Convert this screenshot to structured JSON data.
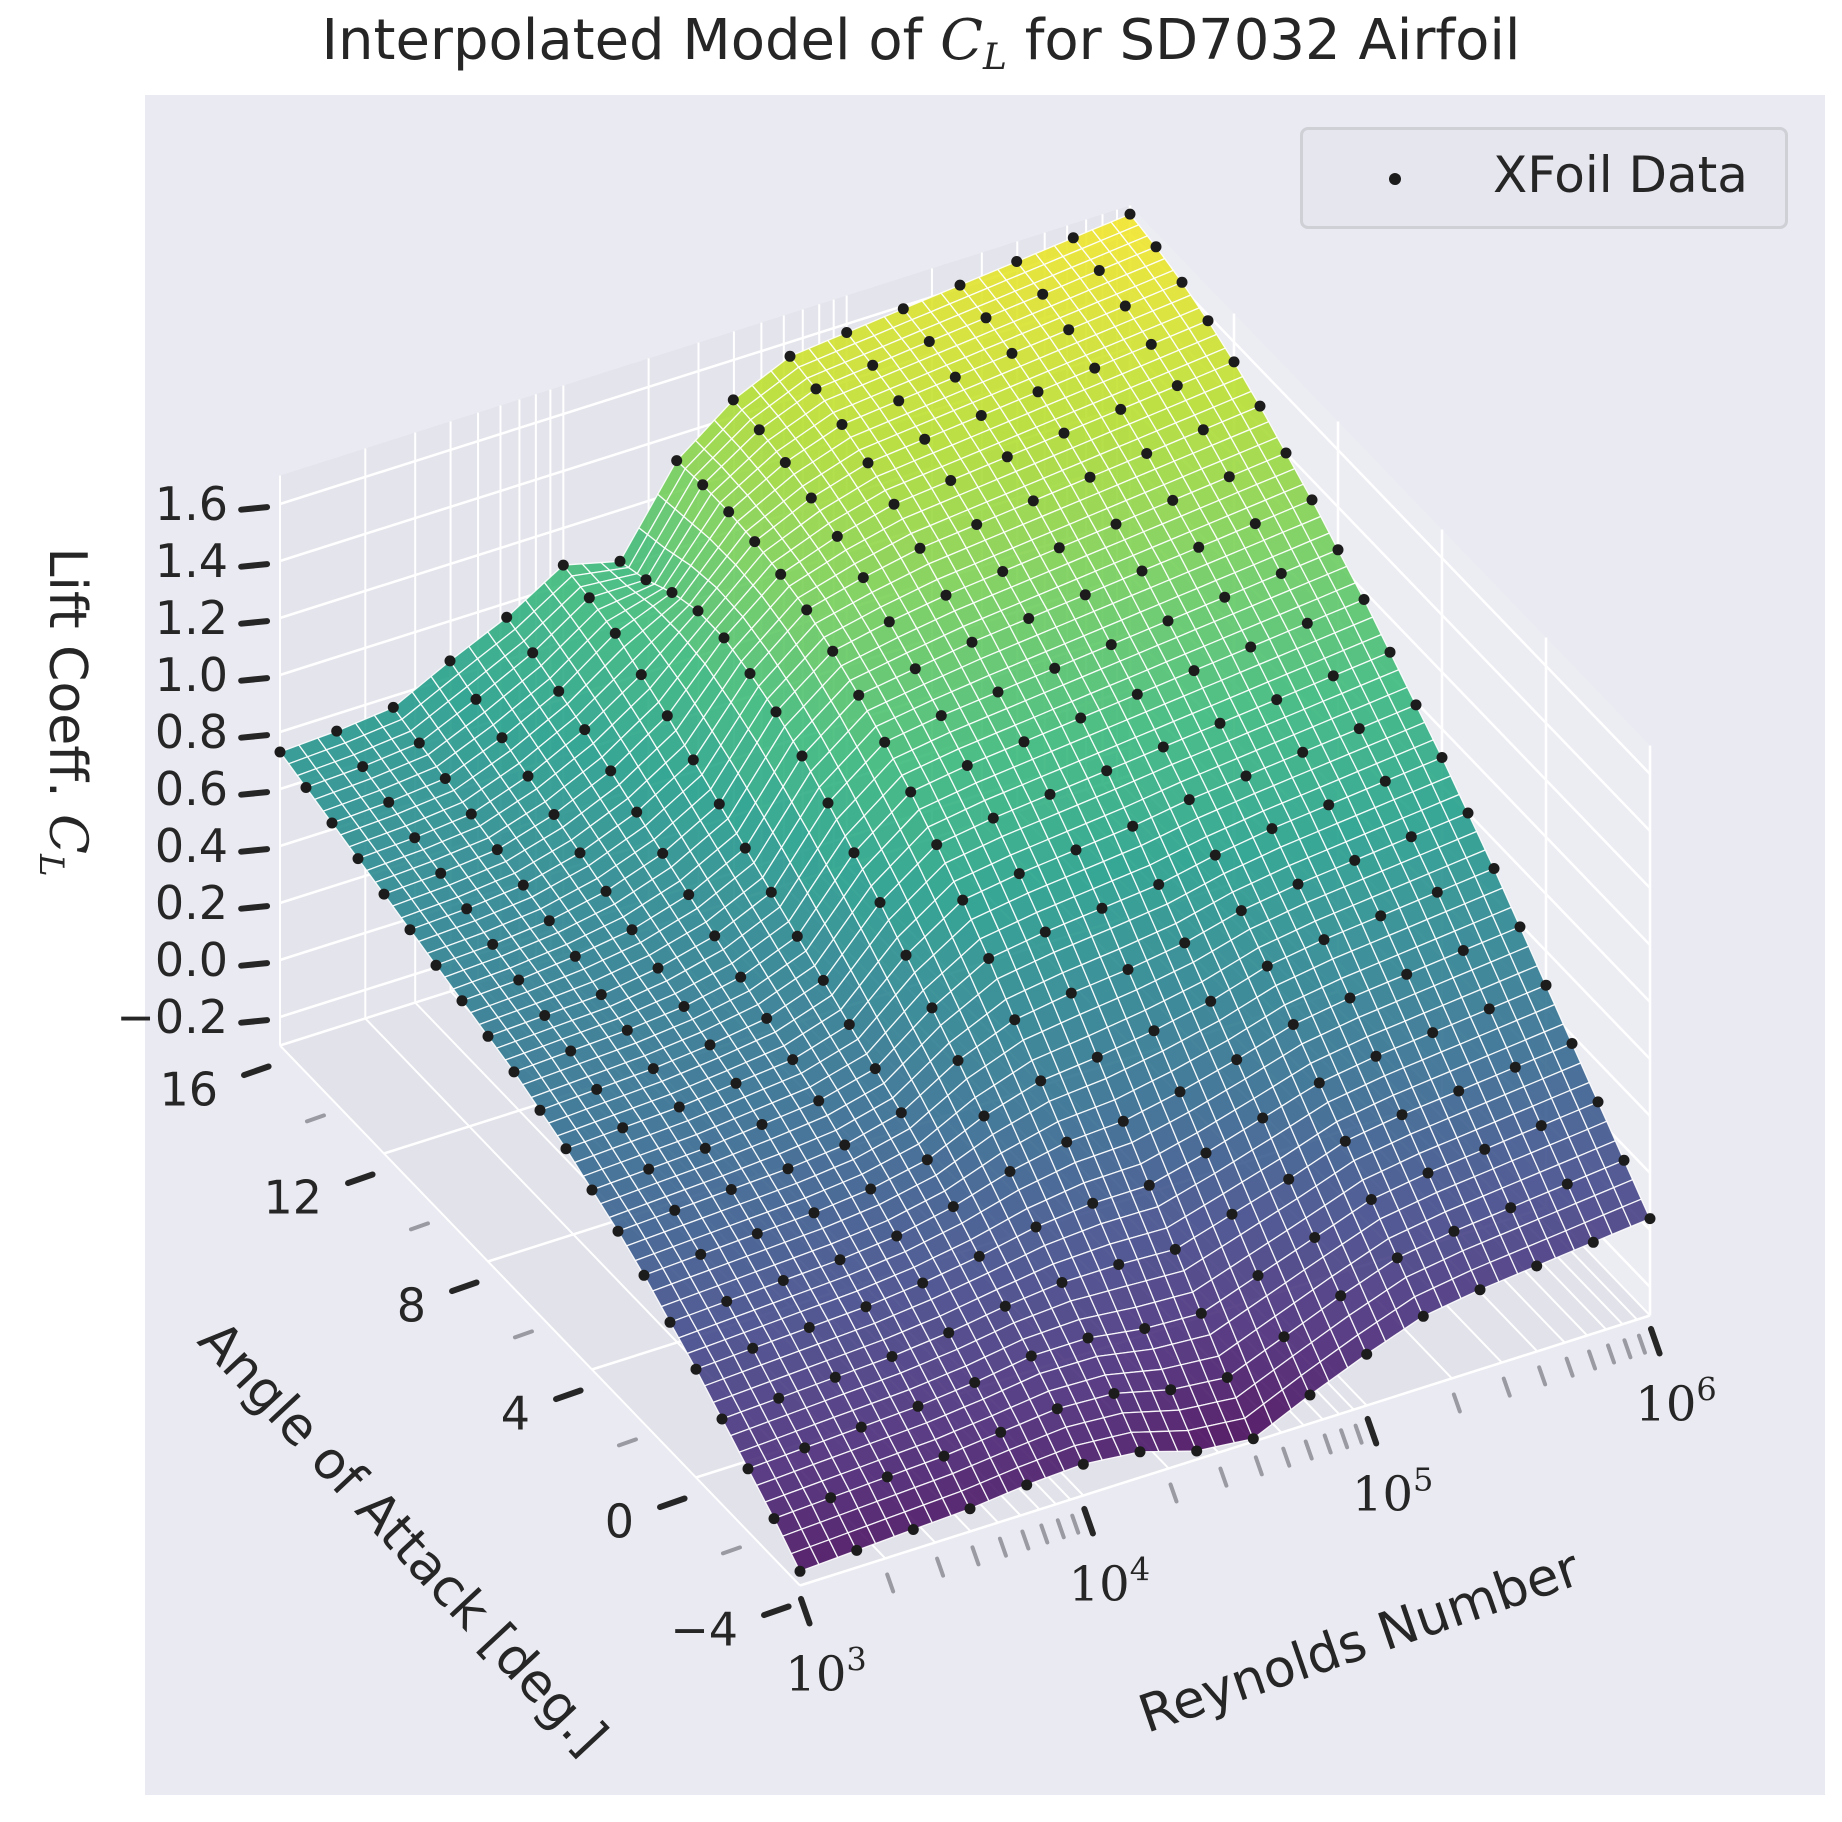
{
  "chart_data": {
    "type": "surface3d",
    "title": {
      "prefix": "Interpolated Model of ",
      "math_symbol": "C",
      "math_subscript": "L",
      "suffix": " for SD7032 Airfoil"
    },
    "x_axis": {
      "label": "Reynolds Number",
      "scale": "log",
      "range": [
        1000,
        1000000
      ],
      "ticks": [
        {
          "base": "10",
          "exp": "3",
          "value": 1000
        },
        {
          "base": "10",
          "exp": "4",
          "value": 10000
        },
        {
          "base": "10",
          "exp": "5",
          "value": 100000
        },
        {
          "base": "10",
          "exp": "6",
          "value": 1000000
        }
      ]
    },
    "y_axis": {
      "label": "Angle of Attack [deg.]",
      "range": [
        -4,
        16
      ],
      "ticks": [
        "−4",
        "0",
        "4",
        "8",
        "12",
        "16"
      ]
    },
    "z_axis": {
      "label_prefix": "Lift Coeff. ",
      "label_symbol": "C",
      "label_subscript": "L",
      "range": [
        -0.3,
        1.7
      ],
      "ticks": [
        "−0.2",
        "0.0",
        "0.2",
        "0.4",
        "0.6",
        "0.8",
        "1.0",
        "1.2",
        "1.4",
        "1.6"
      ]
    },
    "legend": {
      "position": "top-right",
      "entries": [
        {
          "label": "XFoil Data",
          "marker": "dot",
          "color": "#1c1c1c"
        }
      ]
    },
    "grid": true,
    "colormap": "viridis",
    "surface_grid_color": "#ffffff",
    "background_color": "#eaeaf2",
    "xfoil_data": {
      "log10_reynolds": [
        3.0,
        3.2,
        3.4,
        3.6,
        3.8,
        4.0,
        4.2,
        4.4,
        4.6,
        4.8,
        5.0,
        5.2,
        5.4,
        5.6,
        5.8,
        6.0
      ],
      "alpha_deg": [
        -4,
        -3,
        -2,
        -1,
        0,
        1,
        2,
        3,
        4,
        5,
        6,
        7,
        8,
        9,
        10,
        11,
        12,
        13,
        14,
        15,
        16
      ],
      "cl_by_reynolds": [
        [
          -0.25,
          -0.16,
          -0.08,
          0.0,
          0.08,
          0.15,
          0.22,
          0.28,
          0.33,
          0.38,
          0.42,
          0.46,
          0.49,
          0.52,
          0.55,
          0.58,
          0.61,
          0.64,
          0.67,
          0.7,
          0.73
        ],
        [
          -0.24,
          -0.15,
          -0.07,
          0.01,
          0.09,
          0.16,
          0.23,
          0.29,
          0.34,
          0.39,
          0.43,
          0.47,
          0.5,
          0.53,
          0.56,
          0.59,
          0.62,
          0.65,
          0.68,
          0.71,
          0.74
        ],
        [
          -0.23,
          -0.14,
          -0.06,
          0.02,
          0.1,
          0.17,
          0.24,
          0.3,
          0.35,
          0.4,
          0.44,
          0.48,
          0.51,
          0.55,
          0.58,
          0.61,
          0.64,
          0.67,
          0.7,
          0.73,
          0.76
        ],
        [
          -0.22,
          -0.13,
          -0.05,
          0.03,
          0.11,
          0.18,
          0.25,
          0.31,
          0.37,
          0.42,
          0.46,
          0.5,
          0.54,
          0.58,
          0.62,
          0.66,
          0.7,
          0.74,
          0.78,
          0.82,
          0.86
        ],
        [
          -0.2,
          -0.11,
          -0.03,
          0.05,
          0.13,
          0.2,
          0.27,
          0.33,
          0.39,
          0.44,
          0.49,
          0.54,
          0.59,
          0.64,
          0.69,
          0.74,
          0.79,
          0.84,
          0.88,
          0.92,
          0.95
        ],
        [
          -0.19,
          -0.09,
          0.0,
          0.08,
          0.16,
          0.24,
          0.31,
          0.38,
          0.44,
          0.5,
          0.56,
          0.62,
          0.68,
          0.74,
          0.8,
          0.86,
          0.92,
          0.97,
          1.02,
          1.05,
          1.07
        ],
        [
          -0.21,
          -0.1,
          0.0,
          0.1,
          0.2,
          0.3,
          0.4,
          0.5,
          0.59,
          0.68,
          0.77,
          0.85,
          0.93,
          1.0,
          1.06,
          1.1,
          1.13,
          1.13,
          1.1,
          1.05,
          1.02
        ],
        [
          -0.27,
          -0.15,
          -0.03,
          0.1,
          0.22,
          0.34,
          0.46,
          0.58,
          0.7,
          0.81,
          0.91,
          1.0,
          1.08,
          1.15,
          1.21,
          1.26,
          1.29,
          1.31,
          1.32,
          1.32,
          1.31
        ],
        [
          -0.29,
          -0.17,
          -0.04,
          0.09,
          0.22,
          0.35,
          0.48,
          0.61,
          0.73,
          0.84,
          0.94,
          1.03,
          1.11,
          1.18,
          1.25,
          1.31,
          1.36,
          1.4,
          1.43,
          1.45,
          1.46
        ],
        [
          -0.2,
          -0.09,
          0.03,
          0.15,
          0.27,
          0.39,
          0.51,
          0.63,
          0.75,
          0.86,
          0.96,
          1.05,
          1.13,
          1.21,
          1.28,
          1.35,
          1.41,
          1.46,
          1.5,
          1.53,
          1.55
        ],
        [
          -0.12,
          -0.01,
          0.1,
          0.21,
          0.33,
          0.44,
          0.55,
          0.66,
          0.77,
          0.88,
          0.98,
          1.07,
          1.15,
          1.23,
          1.3,
          1.37,
          1.43,
          1.48,
          1.52,
          1.55,
          1.57
        ],
        [
          -0.05,
          0.06,
          0.17,
          0.28,
          0.39,
          0.5,
          0.61,
          0.71,
          0.81,
          0.91,
          1.0,
          1.09,
          1.17,
          1.25,
          1.32,
          1.39,
          1.45,
          1.5,
          1.54,
          1.57,
          1.59
        ],
        [
          -0.02,
          0.09,
          0.2,
          0.31,
          0.42,
          0.53,
          0.64,
          0.74,
          0.84,
          0.93,
          1.02,
          1.11,
          1.19,
          1.27,
          1.34,
          1.41,
          1.47,
          1.52,
          1.56,
          1.59,
          1.61
        ],
        [
          0.0,
          0.11,
          0.22,
          0.33,
          0.44,
          0.55,
          0.66,
          0.76,
          0.86,
          0.95,
          1.04,
          1.13,
          1.21,
          1.29,
          1.36,
          1.43,
          1.49,
          1.54,
          1.58,
          1.61,
          1.63
        ],
        [
          0.02,
          0.13,
          0.24,
          0.35,
          0.46,
          0.57,
          0.68,
          0.78,
          0.88,
          0.97,
          1.06,
          1.15,
          1.23,
          1.31,
          1.38,
          1.45,
          1.51,
          1.56,
          1.6,
          1.63,
          1.65
        ],
        [
          0.04,
          0.15,
          0.26,
          0.37,
          0.48,
          0.59,
          0.7,
          0.8,
          0.9,
          0.99,
          1.08,
          1.17,
          1.25,
          1.33,
          1.4,
          1.47,
          1.53,
          1.58,
          1.62,
          1.65,
          1.67
        ]
      ]
    }
  }
}
